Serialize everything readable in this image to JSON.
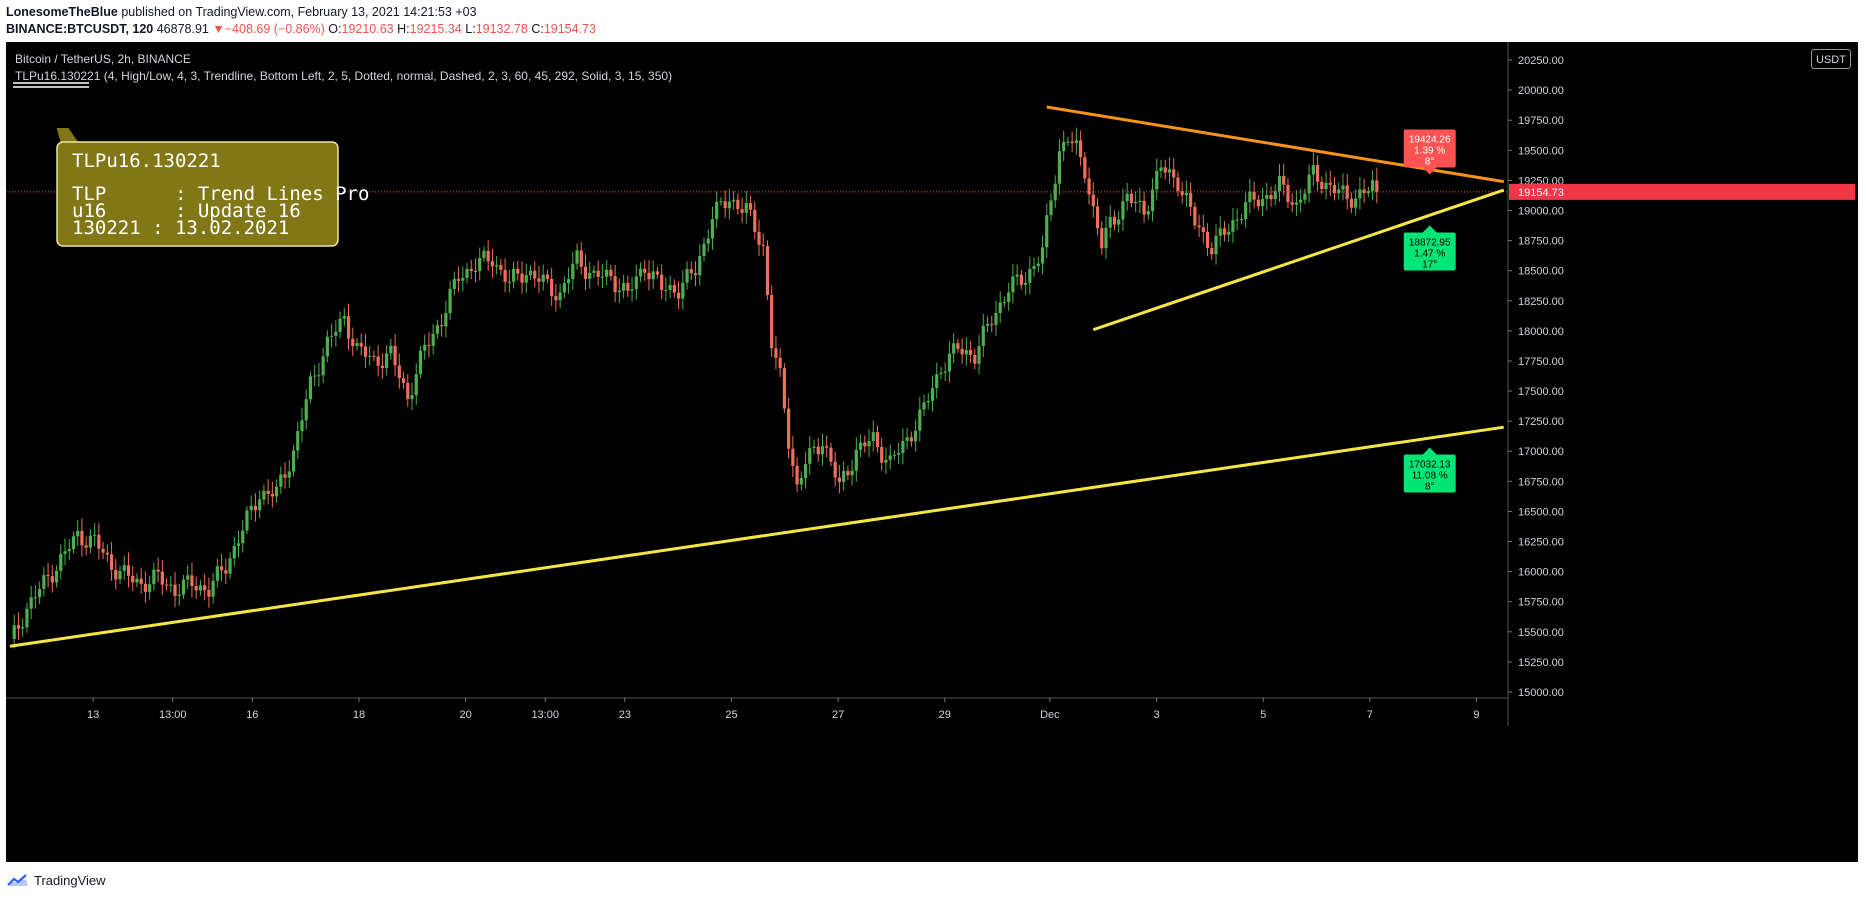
{
  "header": {
    "author": "LonesomeTheBlue",
    "published": "published on TradingView.com, February 13, 2021 14:21:53 +03",
    "symbol": "BINANCE:BTCUSDT, 120",
    "last": "46878.91",
    "arrow": "▼",
    "change": "−408.69 (−0.86%)",
    "o_label": "O:",
    "o_value": "19210.63",
    "h_label": "H:",
    "h_value": "19215.34",
    "l_label": "L:",
    "l_value": "19132.78",
    "c_label": "C:",
    "c_value": "19154.73"
  },
  "pane": {
    "title": "Bitcoin / TetherUS, 2h, BINANCE",
    "indicator": "TLPu16.130221 (4, High/Low, 4, 3, Trendline, Bottom Left, 2, 5, Dotted, normal, Dashed, 2, 3, 60, 45, 292, Solid, 3, 15, 350)",
    "currency": "USDT"
  },
  "infobox": {
    "line1": "TLPu16.130221",
    "line2": "TLP      : Trend Lines Pro",
    "line3": "u16      : Update 16",
    "line4": "130221 : 13.02.2021"
  },
  "footer": {
    "brand": "TradingView"
  },
  "colors": {
    "up": "#26a69a",
    "down": "#ef5350",
    "green_candle": "#4caf50",
    "red_candle": "#ef6f5c",
    "orange": "#f7931a",
    "yellow": "#f5e642",
    "box": "#827717"
  },
  "chart_data": {
    "type": "candlestick",
    "y_range": [
      14950,
      20400
    ],
    "last_price": "19154.73",
    "price_ticks": [
      "15000.00",
      "15250.00",
      "15500.00",
      "15750.00",
      "16000.00",
      "16250.00",
      "16500.00",
      "16750.00",
      "17000.00",
      "17250.00",
      "17500.00",
      "17750.00",
      "18000.00",
      "18250.00",
      "18500.00",
      "18750.00",
      "19000.00",
      "19250.00",
      "19500.00",
      "19750.00",
      "20000.00",
      "20250.00"
    ],
    "time_ticks": [
      {
        "label": "13",
        "frac": 0.058
      },
      {
        "label": "13:00",
        "frac": 0.111
      },
      {
        "label": "16",
        "frac": 0.164
      },
      {
        "label": "18",
        "frac": 0.235
      },
      {
        "label": "20",
        "frac": 0.306
      },
      {
        "label": "13:00",
        "frac": 0.359
      },
      {
        "label": "23",
        "frac": 0.412
      },
      {
        "label": "25",
        "frac": 0.483
      },
      {
        "label": "27",
        "frac": 0.554
      },
      {
        "label": "29",
        "frac": 0.625
      },
      {
        "label": "Dec",
        "frac": 0.695
      },
      {
        "label": "3",
        "frac": 0.766
      },
      {
        "label": "5",
        "frac": 0.837
      },
      {
        "label": "7",
        "frac": 0.908
      },
      {
        "label": "9",
        "frac": 0.979
      }
    ],
    "anchors": [
      [
        0,
        15400
      ],
      [
        4,
        15700
      ],
      [
        8,
        15900
      ],
      [
        12,
        16100
      ],
      [
        16,
        16300
      ],
      [
        20,
        16250
      ],
      [
        24,
        16050
      ],
      [
        28,
        15950
      ],
      [
        31,
        15900
      ],
      [
        35,
        15950
      ],
      [
        39,
        15850
      ],
      [
        43,
        15900
      ],
      [
        47,
        15850
      ],
      [
        51,
        16050
      ],
      [
        55,
        16350
      ],
      [
        59,
        16650
      ],
      [
        63,
        16650
      ],
      [
        67,
        17000
      ],
      [
        71,
        17550
      ],
      [
        75,
        17900
      ],
      [
        79,
        18100
      ],
      [
        82,
        17850
      ],
      [
        86,
        17750
      ],
      [
        90,
        17800
      ],
      [
        94,
        17450
      ],
      [
        98,
        17850
      ],
      [
        102,
        18100
      ],
      [
        106,
        18450
      ],
      [
        110,
        18550
      ],
      [
        114,
        18600
      ],
      [
        118,
        18400
      ],
      [
        122,
        18500
      ],
      [
        126,
        18400
      ],
      [
        130,
        18300
      ],
      [
        134,
        18600
      ],
      [
        138,
        18450
      ],
      [
        142,
        18450
      ],
      [
        146,
        18300
      ],
      [
        150,
        18550
      ],
      [
        154,
        18350
      ],
      [
        158,
        18350
      ],
      [
        162,
        18500
      ],
      [
        166,
        18950
      ],
      [
        170,
        19100
      ],
      [
        174,
        19000
      ],
      [
        178,
        18700
      ],
      [
        180,
        17900
      ],
      [
        182,
        17600
      ],
      [
        184,
        17100
      ],
      [
        186,
        16700
      ],
      [
        188,
        16900
      ],
      [
        192,
        17100
      ],
      [
        196,
        16700
      ],
      [
        200,
        17000
      ],
      [
        204,
        17100
      ],
      [
        208,
        16900
      ],
      [
        212,
        17100
      ],
      [
        216,
        17350
      ],
      [
        220,
        17700
      ],
      [
        224,
        17850
      ],
      [
        228,
        17800
      ],
      [
        232,
        18100
      ],
      [
        236,
        18350
      ],
      [
        240,
        18450
      ],
      [
        244,
        18650
      ],
      [
        246,
        19100
      ],
      [
        248,
        19500
      ],
      [
        250,
        19600
      ],
      [
        252,
        19500
      ],
      [
        254,
        19350
      ],
      [
        256,
        19000
      ],
      [
        258,
        18700
      ],
      [
        260,
        18900
      ],
      [
        264,
        19100
      ],
      [
        268,
        19000
      ],
      [
        272,
        19350
      ],
      [
        276,
        19250
      ],
      [
        280,
        18900
      ],
      [
        284,
        18700
      ],
      [
        288,
        18850
      ],
      [
        292,
        19050
      ],
      [
        296,
        19100
      ],
      [
        300,
        19200
      ],
      [
        304,
        19050
      ],
      [
        308,
        19300
      ],
      [
        312,
        19200
      ],
      [
        316,
        19100
      ],
      [
        320,
        19150
      ],
      [
        323,
        19200
      ]
    ],
    "trendlines": [
      {
        "name": "upper-resistance",
        "color": "orange",
        "from": [
          245,
          19860
        ],
        "to": [
          353,
          19240
        ]
      },
      {
        "name": "triangle-support",
        "color": "yellow",
        "from": [
          256,
          18010
        ],
        "to": [
          353,
          19170
        ]
      },
      {
        "name": "long-support",
        "color": "yellow",
        "from": [
          0,
          15380
        ],
        "to": [
          353,
          17200
        ]
      }
    ],
    "labels": [
      {
        "name": "resistance-label",
        "price": "19424.26",
        "pct": "1.39 %",
        "angle": "8°",
        "kind": "red"
      },
      {
        "name": "triangle-support-label",
        "price": "18872.95",
        "pct": "1.47 %",
        "angle": "17°",
        "kind": "green"
      },
      {
        "name": "long-support-label",
        "price": "17032.13",
        "pct": "11.08 %",
        "angle": "8°",
        "kind": "green"
      }
    ]
  }
}
